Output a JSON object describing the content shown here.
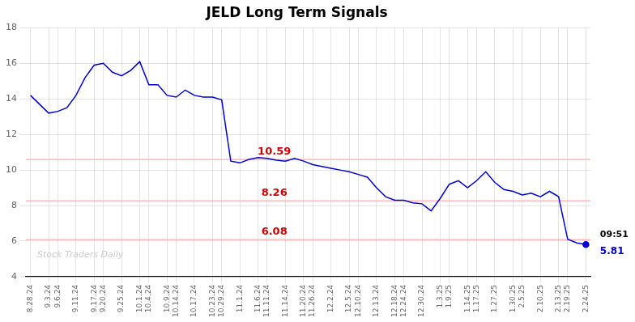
{
  "chart_data": {
    "type": "line",
    "title": "JELD Long Term Signals",
    "categories": [
      "8.28.24",
      null,
      "9.3.24",
      "9.6.24",
      null,
      "9.11.24",
      null,
      "9.17.24",
      "9.20.24",
      null,
      "9.25.24",
      null,
      "10.1.24",
      "10.4.24",
      null,
      "10.9.24",
      "10.14.24",
      null,
      "10.17.24",
      null,
      "10.23.24",
      "10.29.24",
      null,
      "11.1.24",
      null,
      "11.6.24",
      "11.11.24",
      null,
      "11.14.24",
      null,
      "11.20.24",
      "11.26.24",
      null,
      "12.2.24",
      null,
      "12.5.24",
      "12.10.24",
      null,
      "12.13.24",
      null,
      "12.18.24",
      "12.24.24",
      null,
      "12.30.24",
      null,
      "1.3.25",
      "1.9.25",
      null,
      "1.14.25",
      "1.17.25",
      null,
      "1.27.25",
      null,
      "1.30.25",
      "2.5.25",
      null,
      "2.10.25",
      null,
      "2.13.25",
      "2.19.25",
      null,
      "2.24.25"
    ],
    "values": [
      14.2,
      13.7,
      13.2,
      13.3,
      13.5,
      14.2,
      15.2,
      15.9,
      16.0,
      15.5,
      15.3,
      15.6,
      16.1,
      14.8,
      14.8,
      14.2,
      14.1,
      14.5,
      14.2,
      14.1,
      14.1,
      13.95,
      10.5,
      10.4,
      10.6,
      10.7,
      10.65,
      10.55,
      10.5,
      10.65,
      10.5,
      10.3,
      10.2,
      10.1,
      10.0,
      9.9,
      9.75,
      9.6,
      9.0,
      8.5,
      8.3,
      8.3,
      8.15,
      8.1,
      7.7,
      8.4,
      9.2,
      9.4,
      9.0,
      9.4,
      9.9,
      9.3,
      8.9,
      8.8,
      8.6,
      8.7,
      8.5,
      8.8,
      8.5,
      6.1,
      5.9,
      5.81
    ],
    "color": "#0000cc",
    "ylim": [
      4,
      18
    ],
    "yticks": [
      4,
      6,
      8,
      10,
      12,
      14,
      16,
      18
    ],
    "grid": true,
    "annotations": [
      {
        "type": "hline",
        "y": 10.59,
        "text": "10.59",
        "color": "#ffbbbb",
        "text_color": "#cc0000"
      },
      {
        "type": "hline",
        "y": 8.26,
        "text": "8.26",
        "color": "#ffbbbb",
        "text_color": "#cc0000"
      },
      {
        "type": "hline",
        "y": 6.08,
        "text": "6.08",
        "color": "#ffbbbb",
        "text_color": "#cc0000"
      },
      {
        "type": "watermark",
        "text": "Stock Traders Daily",
        "color": "#cccccc"
      },
      {
        "type": "endpoint_time",
        "text": "09:51",
        "color": "#000000"
      },
      {
        "type": "endpoint_value",
        "text": "5.81",
        "color": "#0000cc"
      }
    ]
  }
}
